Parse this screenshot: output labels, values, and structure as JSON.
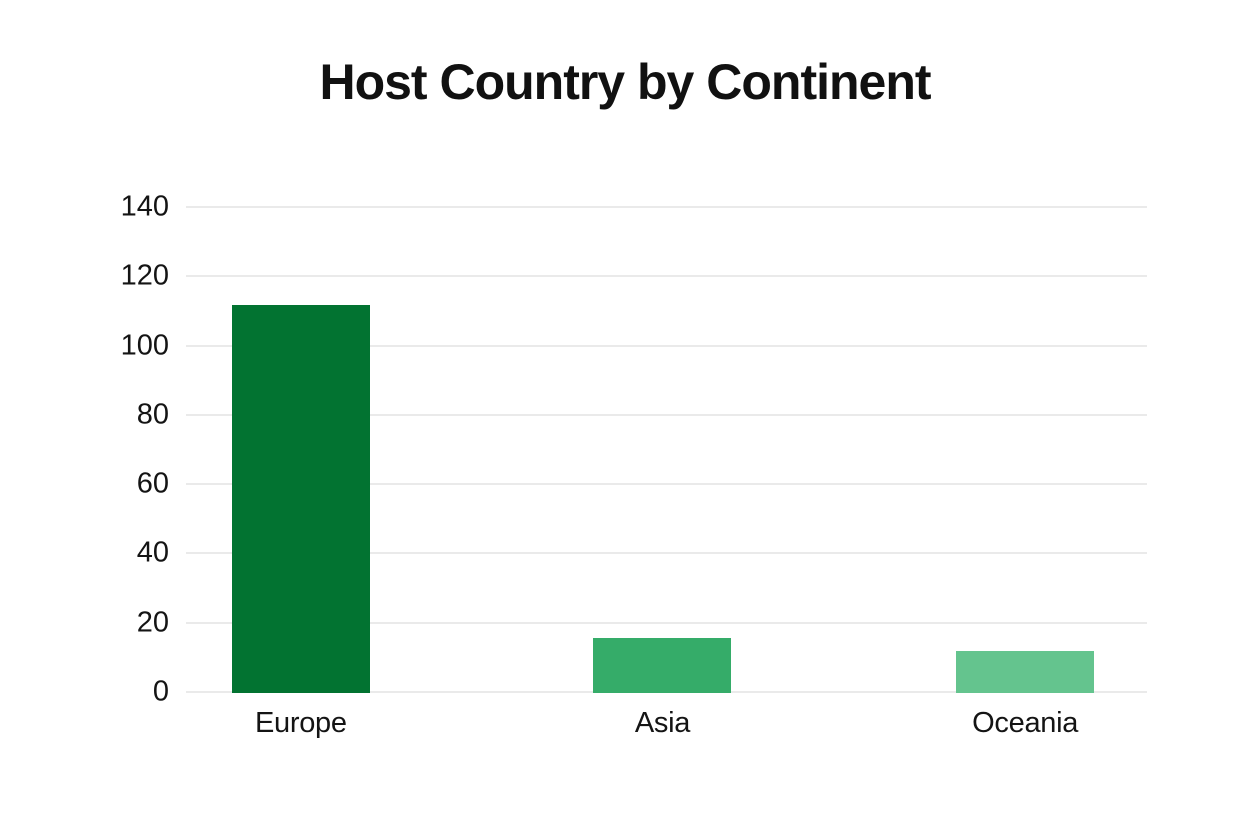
{
  "chart_data": {
    "type": "bar",
    "title": "Host Country by Continent",
    "categories": [
      "Europe",
      "Asia",
      "Oceania"
    ],
    "values": [
      112,
      16,
      12
    ],
    "xlabel": "",
    "ylabel": "",
    "ylim": [
      0,
      140
    ],
    "yticks": [
      0,
      20,
      40,
      60,
      80,
      100,
      120,
      140
    ],
    "grid": "horizontal",
    "legend": "none",
    "bar_colors": [
      "#027331",
      "#35AC69",
      "#64C48E"
    ],
    "gridline_color": "#EAEAEA",
    "text_color": "#141414",
    "title_color": "#111111",
    "background_color": "#FFFFFF"
  }
}
